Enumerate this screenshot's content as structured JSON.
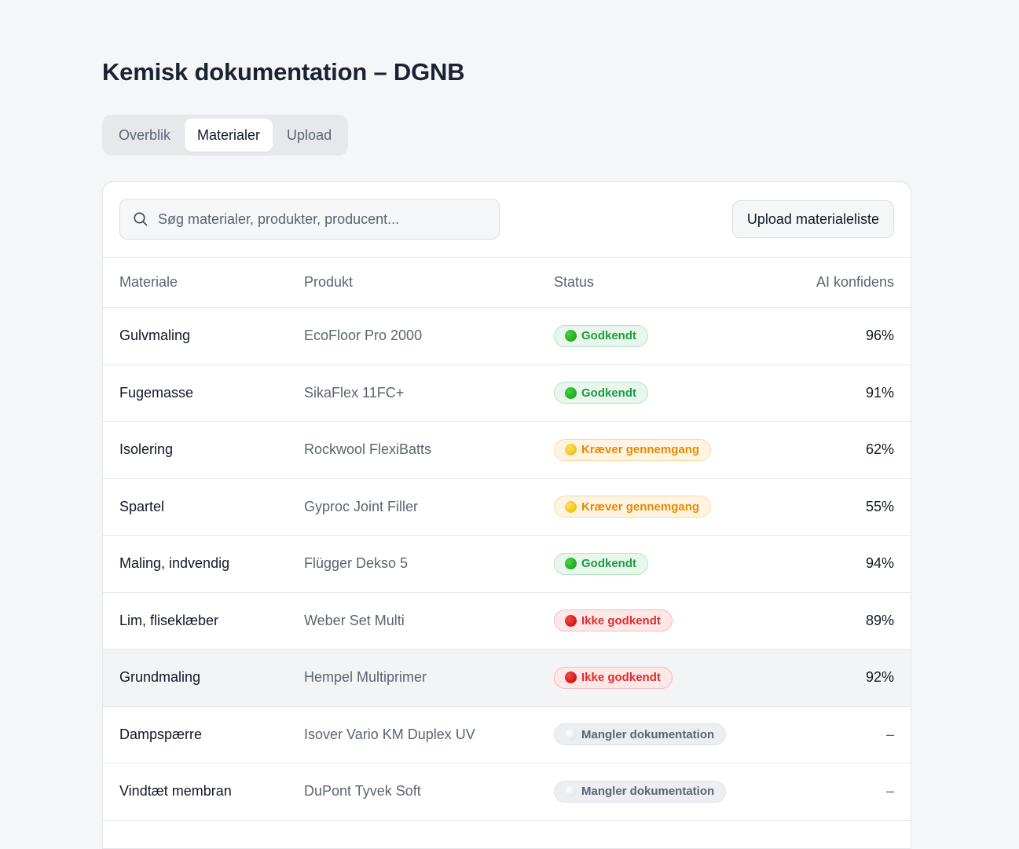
{
  "header": {
    "title": "Kemisk dokumentation – DGNB"
  },
  "tabs": [
    {
      "label": "Overblik",
      "active": false
    },
    {
      "label": "Materialer",
      "active": true
    },
    {
      "label": "Upload",
      "active": false
    }
  ],
  "toolbar": {
    "search_placeholder": "Søg materialer, produkter, producent...",
    "search_value": "",
    "upload_label": "Upload materialeliste"
  },
  "table": {
    "columns": [
      "Materiale",
      "Produkt",
      "Status",
      "AI konfidens"
    ],
    "rows": [
      {
        "material": "Gulvmaling",
        "product": "EcoFloor Pro 2000",
        "status": "Godkendt",
        "tone": "green",
        "confidence": "96%"
      },
      {
        "material": "Fugemasse",
        "product": "SikaFlex 11FC+",
        "status": "Godkendt",
        "tone": "green",
        "confidence": "91%"
      },
      {
        "material": "Isolering",
        "product": "Rockwool FlexiBatts",
        "status": "Kræver gennemgang",
        "tone": "yellow",
        "confidence": "62%"
      },
      {
        "material": "Spartel",
        "product": "Gyproc Joint Filler",
        "status": "Kræver gennemgang",
        "tone": "yellow",
        "confidence": "55%"
      },
      {
        "material": "Maling, indvendig",
        "product": "Flügger Dekso 5",
        "status": "Godkendt",
        "tone": "green",
        "confidence": "94%"
      },
      {
        "material": "Lim, fliseklæber",
        "product": "Weber Set Multi",
        "status": "Ikke godkendt",
        "tone": "red",
        "confidence": "89%"
      },
      {
        "material": "Grundmaling",
        "product": "Hempel Multiprimer",
        "status": "Ikke godkendt",
        "tone": "red",
        "confidence": "92%",
        "highlighted": true
      },
      {
        "material": "Dampspærre",
        "product": "Isover Vario KM Duplex UV",
        "status": "Mangler dokumentation",
        "tone": "gray",
        "confidence": "–"
      },
      {
        "material": "Vindtæt membran",
        "product": "DuPont Tyvek Soft",
        "status": "Mangler dokumentation",
        "tone": "gray",
        "confidence": "–"
      }
    ]
  },
  "colors": {
    "green": "#1f9a45",
    "yellow": "#e38b00",
    "red": "#dc2f2f",
    "gray": "#5b6472"
  }
}
